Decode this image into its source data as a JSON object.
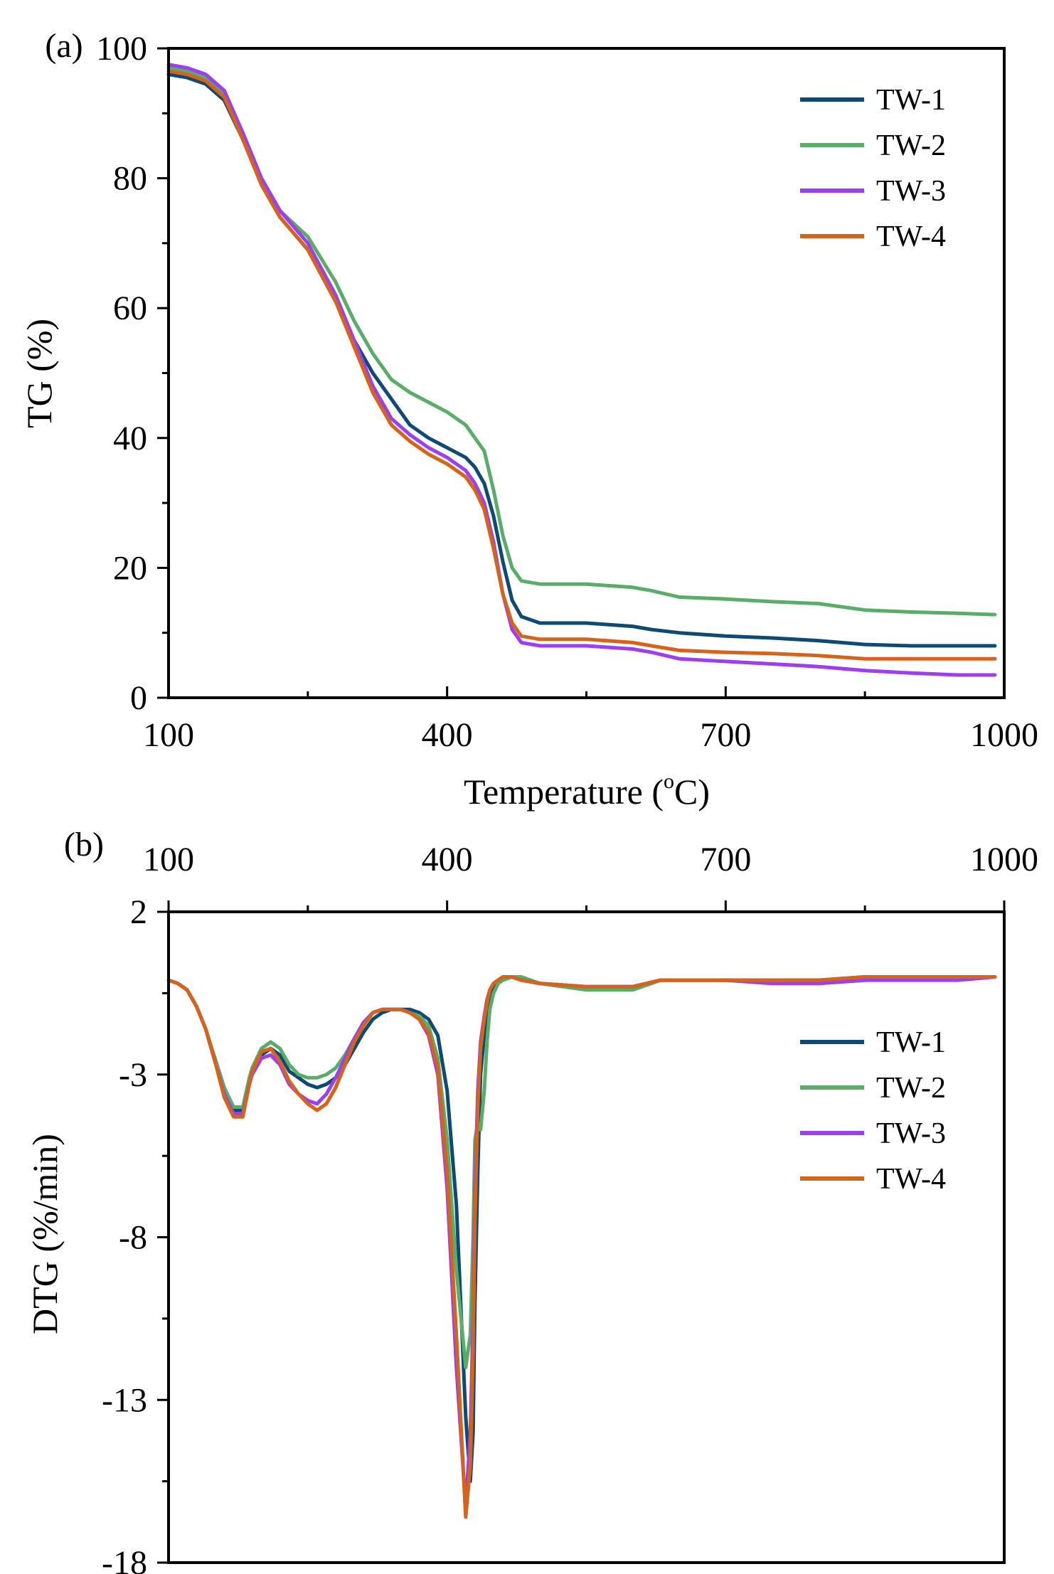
{
  "chart_data": [
    {
      "id": "a",
      "panel_label": "(a)",
      "type": "line",
      "xlabel": "Temperature (°C)",
      "xlabel_parts": [
        "Temperature (",
        "o",
        "C)"
      ],
      "ylabel": "TG (%)",
      "xlim": [
        100,
        1000
      ],
      "ylim": [
        0,
        100
      ],
      "xticks": [
        100,
        400,
        700,
        1000
      ],
      "yticks": [
        0,
        20,
        40,
        60,
        80,
        100
      ],
      "legend_position": "top-right",
      "grid": false,
      "series": [
        {
          "name": "TW-1",
          "color": "#0e4a73",
          "x": [
            100,
            120,
            140,
            160,
            180,
            200,
            220,
            250,
            280,
            300,
            320,
            340,
            360,
            380,
            400,
            420,
            430,
            440,
            450,
            460,
            470,
            480,
            500,
            550,
            600,
            620,
            650,
            700,
            750,
            800,
            850,
            900,
            950,
            990
          ],
          "y": [
            96,
            95.5,
            94.5,
            92,
            86,
            79,
            74,
            69,
            61,
            55,
            50,
            46,
            42,
            40,
            38.5,
            37,
            35.5,
            33,
            28,
            21,
            15,
            12.5,
            11.5,
            11.5,
            11,
            10.5,
            10,
            9.5,
            9.2,
            8.8,
            8.2,
            8,
            8,
            8
          ]
        },
        {
          "name": "TW-2",
          "color": "#5aad68",
          "x": [
            100,
            120,
            140,
            160,
            180,
            200,
            220,
            250,
            280,
            300,
            320,
            340,
            360,
            380,
            400,
            420,
            430,
            440,
            450,
            460,
            470,
            480,
            500,
            550,
            600,
            620,
            650,
            700,
            750,
            800,
            850,
            900,
            950,
            990
          ],
          "y": [
            97,
            96.5,
            95.5,
            93,
            87,
            80,
            75,
            71,
            64,
            58,
            53,
            49,
            47,
            45.5,
            44,
            42,
            40,
            38,
            32,
            25,
            20,
            18,
            17.5,
            17.5,
            17,
            16.5,
            15.5,
            15.2,
            14.8,
            14.5,
            13.5,
            13.2,
            13,
            12.8
          ]
        },
        {
          "name": "TW-3",
          "color": "#9b3ff0",
          "x": [
            100,
            120,
            140,
            160,
            180,
            200,
            220,
            250,
            280,
            300,
            320,
            340,
            360,
            380,
            400,
            420,
            430,
            440,
            450,
            460,
            470,
            480,
            500,
            550,
            600,
            620,
            650,
            700,
            750,
            800,
            850,
            900,
            950,
            990
          ],
          "y": [
            97.5,
            97,
            96,
            93.5,
            87,
            80,
            75,
            70,
            62,
            55,
            48,
            43,
            40.5,
            38.5,
            37,
            35,
            33,
            30,
            24,
            16,
            10.5,
            8.5,
            8,
            8,
            7.5,
            7,
            6,
            5.6,
            5.2,
            4.8,
            4.2,
            3.8,
            3.5,
            3.5
          ]
        },
        {
          "name": "TW-4",
          "color": "#d4641c",
          "x": [
            100,
            120,
            140,
            160,
            180,
            200,
            220,
            250,
            280,
            300,
            320,
            340,
            360,
            380,
            400,
            420,
            430,
            440,
            450,
            460,
            470,
            480,
            500,
            550,
            600,
            620,
            650,
            700,
            750,
            800,
            850,
            900,
            950,
            990
          ],
          "y": [
            96.5,
            96,
            95,
            92.5,
            86,
            79,
            74,
            69,
            61,
            54,
            47,
            42,
            39.5,
            37.5,
            36,
            34,
            32,
            29,
            23,
            16,
            11.5,
            9.5,
            9,
            9,
            8.5,
            8,
            7.3,
            7,
            6.8,
            6.5,
            6,
            6,
            6,
            6
          ]
        }
      ]
    },
    {
      "id": "b",
      "panel_label": "(b)",
      "type": "line",
      "xlabel": "",
      "ylabel": "DTG (%/min)",
      "xlim": [
        100,
        1000
      ],
      "ylim": [
        -18,
        2
      ],
      "xticks": [
        100,
        400,
        700,
        1000
      ],
      "yticks": [
        2,
        -3,
        -8,
        -13,
        -18
      ],
      "x_axis_position": "top",
      "legend_position": "right",
      "grid": false,
      "series": [
        {
          "name": "TW-1",
          "color": "#0e4a73",
          "x": [
            100,
            110,
            120,
            130,
            140,
            150,
            160,
            170,
            180,
            187,
            190,
            200,
            210,
            220,
            230,
            240,
            250,
            260,
            270,
            280,
            290,
            300,
            310,
            320,
            330,
            340,
            350,
            360,
            370,
            380,
            390,
            400,
            410,
            420,
            425,
            428,
            430,
            433,
            436,
            440,
            443,
            446,
            450,
            455,
            460,
            470,
            480,
            500,
            550,
            600,
            630,
            650,
            700,
            750,
            800,
            850,
            900,
            950,
            990
          ],
          "y": [
            -0.1,
            -0.2,
            -0.4,
            -0.9,
            -1.6,
            -2.6,
            -3.5,
            -4.1,
            -4.1,
            -3.2,
            -2.9,
            -2.4,
            -2.2,
            -2.4,
            -2.9,
            -3.1,
            -3.3,
            -3.4,
            -3.3,
            -3.1,
            -2.7,
            -2.2,
            -1.7,
            -1.3,
            -1.1,
            -1.0,
            -1.0,
            -1.0,
            -1.1,
            -1.3,
            -1.8,
            -3.5,
            -7.0,
            -13.5,
            -15.5,
            -14.0,
            -10.0,
            -6.0,
            -3.0,
            -1.8,
            -1.0,
            -0.6,
            -0.3,
            -0.1,
            0.0,
            0.0,
            -0.1,
            -0.2,
            -0.3,
            -0.3,
            -0.1,
            -0.1,
            -0.1,
            -0.1,
            -0.1,
            0.0,
            0.0,
            0.0,
            0.0
          ]
        },
        {
          "name": "TW-2",
          "color": "#5aad68",
          "x": [
            100,
            110,
            120,
            130,
            140,
            150,
            160,
            170,
            180,
            187,
            190,
            200,
            210,
            220,
            230,
            240,
            250,
            260,
            270,
            280,
            290,
            300,
            310,
            320,
            330,
            340,
            350,
            360,
            370,
            380,
            390,
            400,
            410,
            420,
            425,
            428,
            430,
            433,
            436,
            440,
            443,
            446,
            450,
            455,
            460,
            470,
            480,
            500,
            550,
            600,
            630,
            650,
            700,
            750,
            800,
            850,
            900,
            950,
            990
          ],
          "y": [
            -0.1,
            -0.2,
            -0.4,
            -0.9,
            -1.6,
            -2.5,
            -3.4,
            -4.0,
            -4.0,
            -3.1,
            -2.8,
            -2.2,
            -2.0,
            -2.2,
            -2.7,
            -3.0,
            -3.1,
            -3.1,
            -3.0,
            -2.8,
            -2.4,
            -1.9,
            -1.4,
            -1.1,
            -1.0,
            -1.0,
            -1.0,
            -1.1,
            -1.2,
            -1.5,
            -2.5,
            -5.0,
            -9.0,
            -12.0,
            -11.0,
            -8.0,
            -5.0,
            -4.5,
            -4.7,
            -3.5,
            -2.0,
            -1.0,
            -0.5,
            -0.2,
            -0.1,
            0.0,
            0.0,
            -0.2,
            -0.4,
            -0.4,
            -0.1,
            -0.1,
            -0.1,
            -0.1,
            -0.2,
            -0.1,
            0.0,
            0.0,
            0.0
          ]
        },
        {
          "name": "TW-3",
          "color": "#9b3ff0",
          "x": [
            100,
            110,
            120,
            130,
            140,
            150,
            160,
            170,
            180,
            187,
            190,
            200,
            210,
            220,
            230,
            240,
            250,
            260,
            270,
            280,
            290,
            300,
            310,
            320,
            330,
            340,
            350,
            360,
            370,
            380,
            390,
            400,
            410,
            420,
            425,
            428,
            430,
            433,
            436,
            440,
            443,
            446,
            450,
            455,
            460,
            470,
            480,
            500,
            550,
            600,
            630,
            650,
            700,
            750,
            800,
            850,
            900,
            950,
            990
          ],
          "y": [
            -0.1,
            -0.2,
            -0.4,
            -0.9,
            -1.6,
            -2.6,
            -3.6,
            -4.2,
            -4.2,
            -3.3,
            -3.0,
            -2.5,
            -2.4,
            -2.7,
            -3.3,
            -3.6,
            -3.8,
            -3.9,
            -3.6,
            -3.1,
            -2.5,
            -1.9,
            -1.4,
            -1.1,
            -1.0,
            -1.0,
            -1.0,
            -1.1,
            -1.3,
            -1.8,
            -3.0,
            -6.5,
            -12.0,
            -16.3,
            -14.0,
            -10.5,
            -6.5,
            -3.5,
            -2.0,
            -1.2,
            -0.7,
            -0.4,
            -0.2,
            -0.1,
            0.0,
            0.0,
            -0.1,
            -0.2,
            -0.3,
            -0.3,
            -0.1,
            -0.1,
            -0.1,
            -0.2,
            -0.2,
            -0.1,
            -0.1,
            -0.1,
            0.0
          ]
        },
        {
          "name": "TW-4",
          "color": "#d4641c",
          "x": [
            100,
            110,
            120,
            130,
            140,
            150,
            160,
            170,
            180,
            187,
            190,
            200,
            210,
            220,
            230,
            240,
            250,
            260,
            270,
            280,
            290,
            300,
            310,
            320,
            330,
            340,
            350,
            360,
            370,
            380,
            390,
            400,
            410,
            420,
            425,
            428,
            430,
            433,
            436,
            440,
            443,
            446,
            450,
            455,
            460,
            470,
            480,
            500,
            550,
            600,
            630,
            650,
            700,
            750,
            800,
            850,
            900,
            950,
            990
          ],
          "y": [
            -0.1,
            -0.2,
            -0.4,
            -0.9,
            -1.6,
            -2.6,
            -3.7,
            -4.3,
            -4.3,
            -3.3,
            -2.9,
            -2.3,
            -2.2,
            -2.6,
            -3.2,
            -3.6,
            -3.9,
            -4.1,
            -3.9,
            -3.4,
            -2.7,
            -2.0,
            -1.5,
            -1.1,
            -1.0,
            -1.0,
            -1.0,
            -1.1,
            -1.3,
            -1.7,
            -2.8,
            -6.0,
            -11.0,
            -16.6,
            -15.0,
            -11.5,
            -7.5,
            -4.0,
            -2.2,
            -1.3,
            -0.8,
            -0.4,
            -0.2,
            -0.1,
            0.0,
            0.0,
            -0.1,
            -0.2,
            -0.3,
            -0.3,
            -0.1,
            -0.1,
            -0.1,
            -0.1,
            -0.1,
            0.0,
            0.0,
            0.0,
            0.0
          ]
        }
      ]
    }
  ]
}
